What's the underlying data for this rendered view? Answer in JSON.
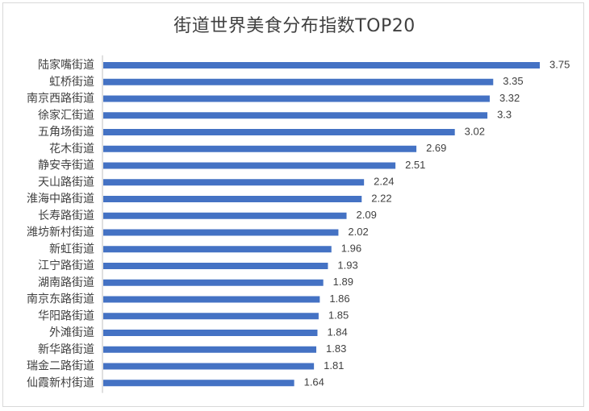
{
  "chart_data": {
    "type": "bar",
    "orientation": "horizontal",
    "title": "街道世界美食分布指数TOP20",
    "categories": [
      "陆家嘴街道",
      "虹桥街道",
      "南京西路街道",
      "徐家汇街道",
      "五角场街道",
      "花木街道",
      "静安寺街道",
      "天山路街道",
      "淮海中路街道",
      "长寿路街道",
      "潍坊新村街道",
      "新虹街道",
      "江宁路街道",
      "湖南路街道",
      "南京东路街道",
      "华阳路街道",
      "外滩街道",
      "新华路街道",
      "瑞金二路街道",
      "仙霞新村街道"
    ],
    "values": [
      3.75,
      3.35,
      3.32,
      3.3,
      3.02,
      2.69,
      2.51,
      2.24,
      2.22,
      2.09,
      2.02,
      1.96,
      1.93,
      1.89,
      1.86,
      1.85,
      1.84,
      1.83,
      1.81,
      1.64
    ],
    "value_labels": [
      "3.75",
      "3.35",
      "3.32",
      "3.3",
      "3.02",
      "2.69",
      "2.51",
      "2.24",
      "2.22",
      "2.09",
      "2.02",
      "1.96",
      "1.93",
      "1.89",
      "1.86",
      "1.85",
      "1.84",
      "1.83",
      "1.81",
      "1.64"
    ],
    "xlabel": "",
    "ylabel": "",
    "xlim": [
      0,
      4
    ],
    "grid": false,
    "legend": "none",
    "bar_color": "#4472c4",
    "axis_color": "#bfbfbf"
  }
}
